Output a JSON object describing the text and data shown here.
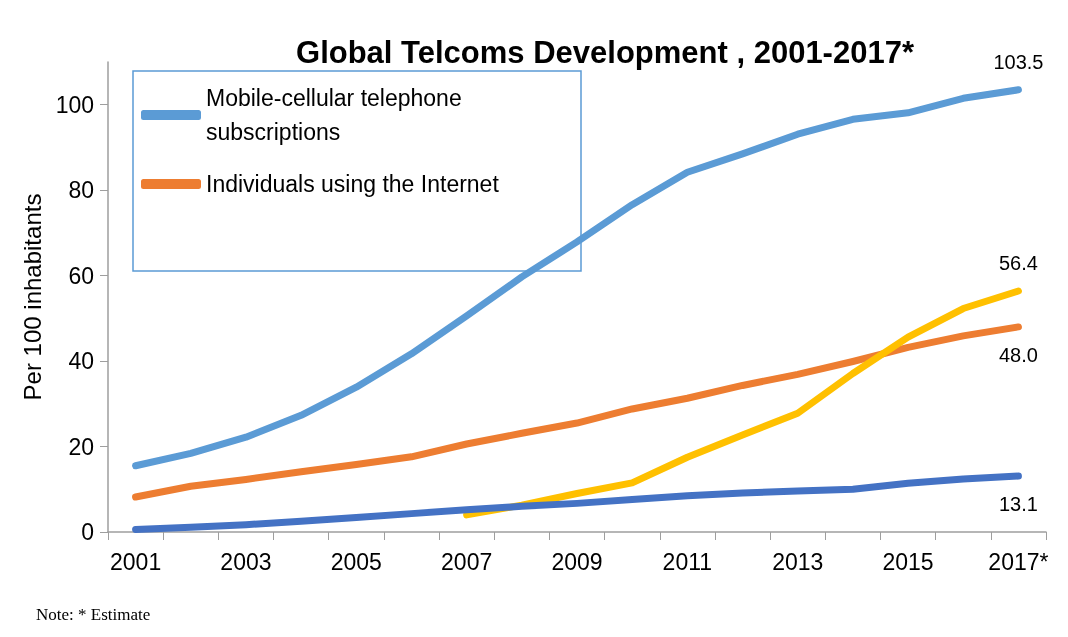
{
  "chart_data": {
    "type": "line",
    "title": "Global Telcoms Development , 2001-2017*",
    "ylabel": "Per 100 inhabitants",
    "categories": [
      "2001",
      null,
      "2003",
      null,
      "2005",
      null,
      "2007",
      null,
      "2009",
      null,
      "2011",
      null,
      "2013",
      null,
      "2015",
      null,
      "2017*"
    ],
    "series": [
      {
        "name": "Mobile-cellular telephone subscriptions",
        "color": "#5b9bd5",
        "values": [
          15.5,
          18.4,
          22.2,
          27.3,
          33.9,
          41.7,
          50.6,
          59.7,
          67.9,
          76.6,
          84.2,
          88.5,
          93.1,
          96.6,
          98.1,
          101.5,
          103.5
        ],
        "value_labels": [
          null,
          null,
          null,
          null,
          null,
          null,
          null,
          null,
          null,
          null,
          null,
          null,
          null,
          null,
          null,
          null,
          "103.5"
        ]
      },
      {
        "name": "Individuals using the Internet",
        "color": "#ed7d31",
        "values": [
          8.2,
          10.7,
          12.3,
          14.1,
          15.8,
          17.6,
          20.6,
          23.1,
          25.5,
          28.8,
          31.3,
          34.3,
          36.9,
          39.9,
          43.2,
          45.9,
          48.0
        ],
        "value_labels": [
          null,
          null,
          null,
          null,
          null,
          null,
          null,
          null,
          null,
          null,
          null,
          null,
          null,
          null,
          null,
          null,
          "48.0"
        ]
      },
      {
        "color": "#ffc000",
        "values": [
          null,
          null,
          null,
          null,
          null,
          null,
          4.0,
          6.3,
          9.0,
          11.5,
          17.5,
          22.7,
          27.8,
          37.1,
          45.6,
          52.3,
          56.4
        ],
        "value_labels": [
          null,
          null,
          null,
          null,
          null,
          null,
          null,
          null,
          null,
          null,
          null,
          null,
          null,
          null,
          null,
          null,
          "56.4"
        ]
      },
      {
        "color": "#4472c4",
        "values": [
          0.6,
          1.1,
          1.7,
          2.5,
          3.4,
          4.3,
          5.2,
          6.0,
          6.7,
          7.6,
          8.5,
          9.1,
          9.6,
          10.0,
          11.4,
          12.4,
          13.1
        ],
        "value_labels": [
          null,
          null,
          null,
          null,
          null,
          null,
          null,
          null,
          null,
          null,
          null,
          null,
          null,
          null,
          null,
          null,
          "13.1"
        ]
      }
    ],
    "ylim": [
      0,
      110
    ],
    "yticks": [
      0,
      20,
      40,
      60,
      80,
      100
    ],
    "grid": false,
    "legend": "top left",
    "marker": "none",
    "line_style": "solid",
    "annotations": [
      "Note: * Estimate"
    ]
  }
}
